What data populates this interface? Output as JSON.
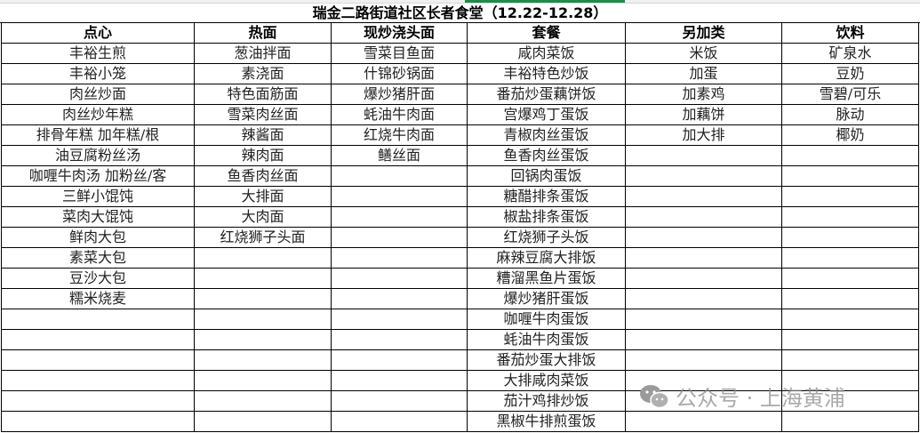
{
  "title": "瑞金二路街道社区长者食堂（12.22-12.28）",
  "columns": [
    {
      "header": "点心",
      "items": [
        "丰裕生煎",
        "丰裕小笼",
        "肉丝炒面",
        "肉丝炒年糕",
        "排骨年糕 加年糕/根",
        "油豆腐粉丝汤",
        "咖喱牛肉汤 加粉丝/客",
        "三鲜小馄饨",
        "菜肉大馄饨",
        "鲜肉大包",
        "素菜大包",
        "豆沙大包",
        "糯米烧麦"
      ]
    },
    {
      "header": "热面",
      "items": [
        "葱油拌面",
        "素浇面",
        "特色面筋面",
        "雪菜肉丝面",
        "辣酱面",
        "辣肉面",
        "鱼香肉丝面",
        "大排面",
        "大肉面",
        "红烧狮子头面"
      ]
    },
    {
      "header": "现炒浇头面",
      "items": [
        "雪菜目鱼面",
        "什锦砂锅面",
        "爆炒猪肝面",
        "蚝油牛肉面",
        "红烧牛肉面",
        "鳝丝面"
      ]
    },
    {
      "header": "套餐",
      "items": [
        "咸肉菜饭",
        "丰裕特色炒饭",
        "番茄炒蛋藕饼饭",
        "宫爆鸡丁蛋饭",
        "青椒肉丝蛋饭",
        "鱼香肉丝蛋饭",
        "回锅肉蛋饭",
        "糖醋排条蛋饭",
        "椒盐排条蛋饭",
        "红烧狮子头饭",
        "麻辣豆腐大排饭",
        "糟溜黑鱼片蛋饭",
        "爆炒猪肝蛋饭",
        "咖喱牛肉蛋饭",
        "蚝油牛肉蛋饭",
        "番茄炒蛋大排饭",
        "大排咸肉菜饭",
        "茄汁鸡排炒饭",
        "黑椒牛排煎蛋饭"
      ]
    },
    {
      "header": "另加类",
      "items": [
        "米饭",
        "加蛋",
        "加素鸡",
        "加藕饼",
        "加大排"
      ]
    },
    {
      "header": "饮料",
      "items": [
        "矿泉水",
        "豆奶",
        "雪碧/可乐",
        "脉动",
        "椰奶"
      ]
    }
  ],
  "watermark": {
    "icon": "wechat-icon",
    "text": "公众号 · 上海黄浦"
  }
}
